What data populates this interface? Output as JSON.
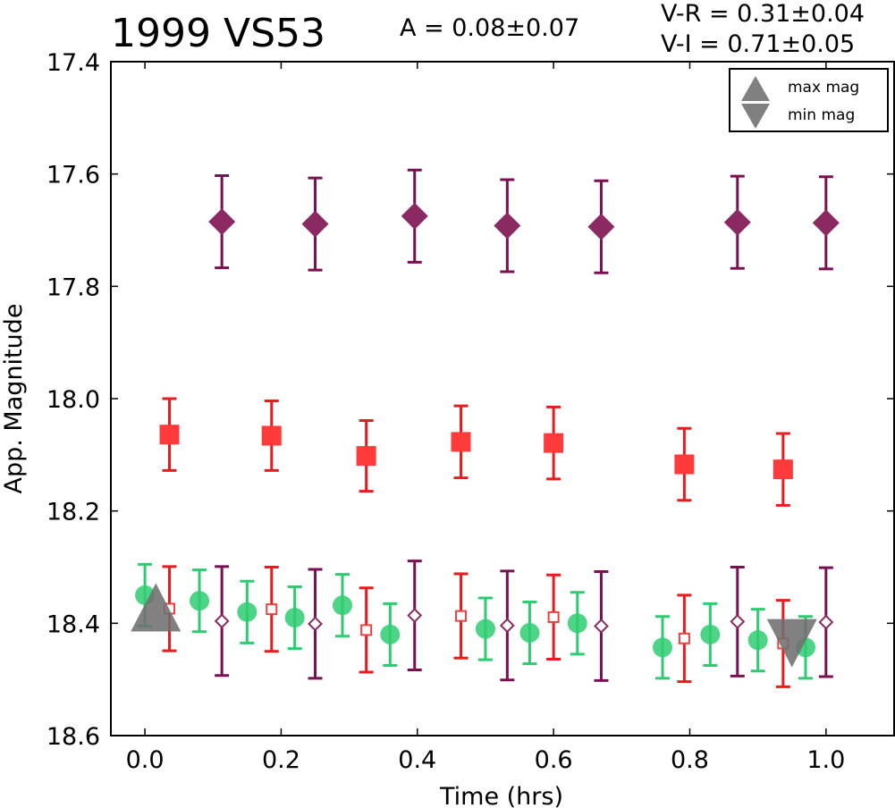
{
  "chart_data": {
    "type": "scatter",
    "title": "1999 VS53",
    "annotations": {
      "amplitude": "A  = 0.08±0.07",
      "v_r": "V-R = 0.31±0.04",
      "v_i": "V-I  = 0.71±0.05"
    },
    "xlabel": "Time (hrs)",
    "ylabel": "App. Magnitude",
    "xlim": [
      -0.05,
      1.1
    ],
    "ylim": [
      18.6,
      17.4
    ],
    "y_inverted": true,
    "grid": false,
    "x_ticks": [
      "0.0",
      "0.2",
      "0.4",
      "0.6",
      "0.8",
      "1.0"
    ],
    "y_ticks": [
      "17.4",
      "17.6",
      "17.8",
      "18.0",
      "18.2",
      "18.4",
      "18.6"
    ],
    "legend": {
      "placement": "top-right",
      "entries": [
        {
          "label": "max mag",
          "marker": "triangle-up",
          "color": "#808080"
        },
        {
          "label": "min mag",
          "marker": "triangle-down",
          "color": "#808080"
        }
      ]
    },
    "series": [
      {
        "marker": "diamond-filled",
        "color": "#8b2a62",
        "errcolor": "#7a1050",
        "points": [
          {
            "x": 0.113,
            "y": 17.685,
            "err": 0.082
          },
          {
            "x": 0.25,
            "y": 17.689,
            "err": 0.082
          },
          {
            "x": 0.396,
            "y": 17.675,
            "err": 0.082
          },
          {
            "x": 0.532,
            "y": 17.692,
            "err": 0.082
          },
          {
            "x": 0.67,
            "y": 17.694,
            "err": 0.082
          },
          {
            "x": 0.87,
            "y": 17.686,
            "err": 0.082
          },
          {
            "x": 1.0,
            "y": 17.687,
            "err": 0.082
          }
        ]
      },
      {
        "marker": "square-filled",
        "color": "#ff3a3a",
        "errcolor": "#e81c1c",
        "points": [
          {
            "x": 0.036,
            "y": 18.064,
            "err": 0.064
          },
          {
            "x": 0.186,
            "y": 18.066,
            "err": 0.062
          },
          {
            "x": 0.325,
            "y": 18.102,
            "err": 0.063
          },
          {
            "x": 0.464,
            "y": 18.077,
            "err": 0.064
          },
          {
            "x": 0.6,
            "y": 18.079,
            "err": 0.064
          },
          {
            "x": 0.792,
            "y": 18.117,
            "err": 0.064
          },
          {
            "x": 0.937,
            "y": 18.126,
            "err": 0.064
          }
        ]
      },
      {
        "marker": "circle-filled",
        "color": "#2ecc71",
        "errcolor": "#2ecc71",
        "points": [
          {
            "x": 0.0,
            "y": 18.35,
            "err": 0.055
          },
          {
            "x": 0.08,
            "y": 18.36,
            "err": 0.055
          },
          {
            "x": 0.15,
            "y": 18.38,
            "err": 0.055
          },
          {
            "x": 0.22,
            "y": 18.39,
            "err": 0.055
          },
          {
            "x": 0.29,
            "y": 18.368,
            "err": 0.055
          },
          {
            "x": 0.36,
            "y": 18.42,
            "err": 0.055
          },
          {
            "x": 0.5,
            "y": 18.41,
            "err": 0.055
          },
          {
            "x": 0.565,
            "y": 18.417,
            "err": 0.055
          },
          {
            "x": 0.635,
            "y": 18.4,
            "err": 0.055
          },
          {
            "x": 0.76,
            "y": 18.443,
            "err": 0.055
          },
          {
            "x": 0.83,
            "y": 18.42,
            "err": 0.055
          },
          {
            "x": 0.9,
            "y": 18.43,
            "err": 0.055
          },
          {
            "x": 0.97,
            "y": 18.443,
            "err": 0.055
          }
        ]
      },
      {
        "marker": "square-open",
        "color": "#f04040",
        "errcolor": "#e81c1c",
        "points": [
          {
            "x": 0.036,
            "y": 18.374,
            "err": 0.075
          },
          {
            "x": 0.186,
            "y": 18.375,
            "err": 0.075
          },
          {
            "x": 0.325,
            "y": 18.412,
            "err": 0.075
          },
          {
            "x": 0.464,
            "y": 18.387,
            "err": 0.075
          },
          {
            "x": 0.6,
            "y": 18.389,
            "err": 0.075
          },
          {
            "x": 0.792,
            "y": 18.427,
            "err": 0.077
          },
          {
            "x": 0.937,
            "y": 18.436,
            "err": 0.077
          }
        ]
      },
      {
        "marker": "diamond-open",
        "color": "#8b2a62",
        "errcolor": "#7a1050",
        "points": [
          {
            "x": 0.113,
            "y": 18.396,
            "err": 0.097
          },
          {
            "x": 0.25,
            "y": 18.401,
            "err": 0.097
          },
          {
            "x": 0.396,
            "y": 18.386,
            "err": 0.097
          },
          {
            "x": 0.532,
            "y": 18.404,
            "err": 0.097
          },
          {
            "x": 0.67,
            "y": 18.405,
            "err": 0.097
          },
          {
            "x": 0.87,
            "y": 18.397,
            "err": 0.097
          },
          {
            "x": 1.0,
            "y": 18.398,
            "err": 0.097
          }
        ]
      }
    ],
    "extrema": [
      {
        "kind": "max",
        "x": 0.016,
        "y": 18.37
      },
      {
        "kind": "min",
        "x": 0.95,
        "y": 18.437
      }
    ]
  }
}
